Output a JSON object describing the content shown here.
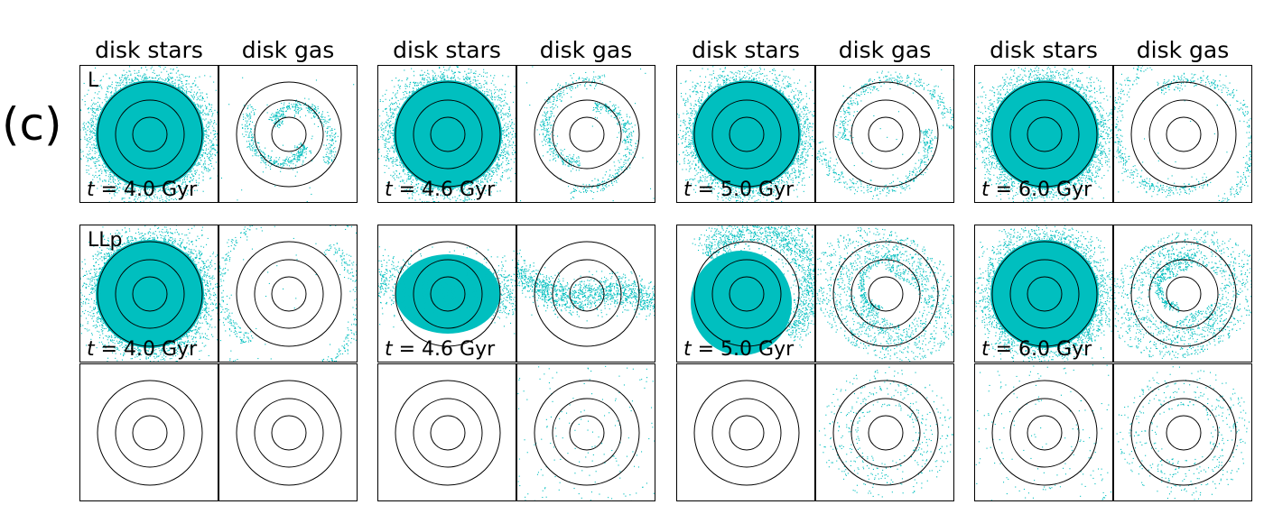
{
  "panel_label": "(c)",
  "column_titles": [
    "disk stars",
    "disk gas",
    "disk stars",
    "disk gas",
    "disk stars",
    "disk gas",
    "disk stars",
    "disk gas"
  ],
  "row_labels": [
    "L",
    "LLp",
    ""
  ],
  "time_labels": [
    {
      "var": "t",
      "text": " = 4.0 Gyr"
    },
    {
      "var": "t",
      "text": " = 4.6 Gyr"
    },
    {
      "var": "t",
      "text": " = 5.0 Gyr"
    },
    {
      "var": "t",
      "text": " = 6.0 Gyr"
    }
  ],
  "colors": {
    "particles": "#00bfbf",
    "circles": "#000000"
  },
  "panels": [
    {
      "row": 0,
      "col": 0,
      "component": "disk stars",
      "distribution": "dense-disk"
    },
    {
      "row": 0,
      "col": 1,
      "component": "disk gas",
      "distribution": "sparse-spiral"
    },
    {
      "row": 0,
      "col": 2,
      "component": "disk stars",
      "distribution": "dense-disk"
    },
    {
      "row": 0,
      "col": 3,
      "component": "disk gas",
      "distribution": "sparse-spiral"
    },
    {
      "row": 0,
      "col": 4,
      "component": "disk stars",
      "distribution": "dense-disk"
    },
    {
      "row": 0,
      "col": 5,
      "component": "disk gas",
      "distribution": "sparse-spiral"
    },
    {
      "row": 0,
      "col": 6,
      "component": "disk stars",
      "distribution": "dense-disk"
    },
    {
      "row": 0,
      "col": 7,
      "component": "disk gas",
      "distribution": "sparse-spiral"
    },
    {
      "row": 1,
      "col": 0,
      "component": "disk stars",
      "distribution": "dense-disk"
    },
    {
      "row": 1,
      "col": 1,
      "component": "disk gas",
      "distribution": "sparse-spiral"
    },
    {
      "row": 1,
      "col": 2,
      "component": "disk stars",
      "distribution": "stretched-disk"
    },
    {
      "row": 1,
      "col": 3,
      "component": "disk gas",
      "distribution": "tidal-stream"
    },
    {
      "row": 1,
      "col": 4,
      "component": "disk stars",
      "distribution": "arc-disk"
    },
    {
      "row": 1,
      "col": 5,
      "component": "disk gas",
      "distribution": "ring-spiral"
    },
    {
      "row": 1,
      "col": 6,
      "component": "disk stars",
      "distribution": "dense-disk"
    },
    {
      "row": 1,
      "col": 7,
      "component": "disk gas",
      "distribution": "ring-spiral"
    },
    {
      "row": 2,
      "col": 0,
      "component": "disk stars",
      "distribution": "empty"
    },
    {
      "row": 2,
      "col": 1,
      "component": "disk gas",
      "distribution": "empty"
    },
    {
      "row": 2,
      "col": 2,
      "component": "disk stars",
      "distribution": "empty"
    },
    {
      "row": 2,
      "col": 3,
      "component": "disk gas",
      "distribution": "sparse-scatter"
    },
    {
      "row": 2,
      "col": 4,
      "component": "disk stars",
      "distribution": "empty"
    },
    {
      "row": 2,
      "col": 5,
      "component": "disk gas",
      "distribution": "sparse-ring"
    },
    {
      "row": 2,
      "col": 6,
      "component": "disk stars",
      "distribution": "sparse-scatter"
    },
    {
      "row": 2,
      "col": 7,
      "component": "disk gas",
      "distribution": "sparse-ring"
    }
  ]
}
